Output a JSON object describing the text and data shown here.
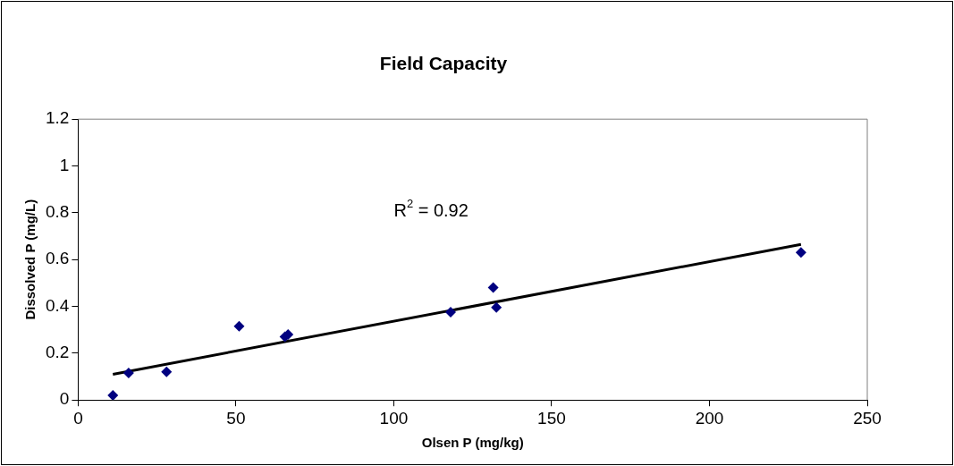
{
  "chart_data": {
    "type": "scatter",
    "title": "Field Capacity",
    "xlabel": "Olsen P (mg/kg)",
    "ylabel": "Dissolved P (mg/L)",
    "annotations": [
      "R$^{2}$ = 0.92"
    ],
    "xlim": [
      0,
      250
    ],
    "xticks": [
      0,
      50,
      100,
      150,
      200,
      250
    ],
    "ylim": [
      0,
      1.2
    ],
    "yticks": [
      0,
      0.2,
      0.4,
      0.6,
      0.8,
      1,
      1.2
    ],
    "series": [
      {
        "color": "#000080",
        "marker": "diamond",
        "x": [
          11,
          16,
          28,
          51,
          65.5,
          66.5,
          118,
          131.5,
          132.5,
          229
        ],
        "values": [
          0.02,
          0.115,
          0.12,
          0.315,
          0.27,
          0.28,
          0.375,
          0.48,
          0.395,
          0.63
        ]
      },
      {
        "type": "line",
        "color": "#000000",
        "marker": "none",
        "x": [
          11,
          229
        ],
        "values": [
          0.11,
          0.665
        ]
      }
    ]
  }
}
